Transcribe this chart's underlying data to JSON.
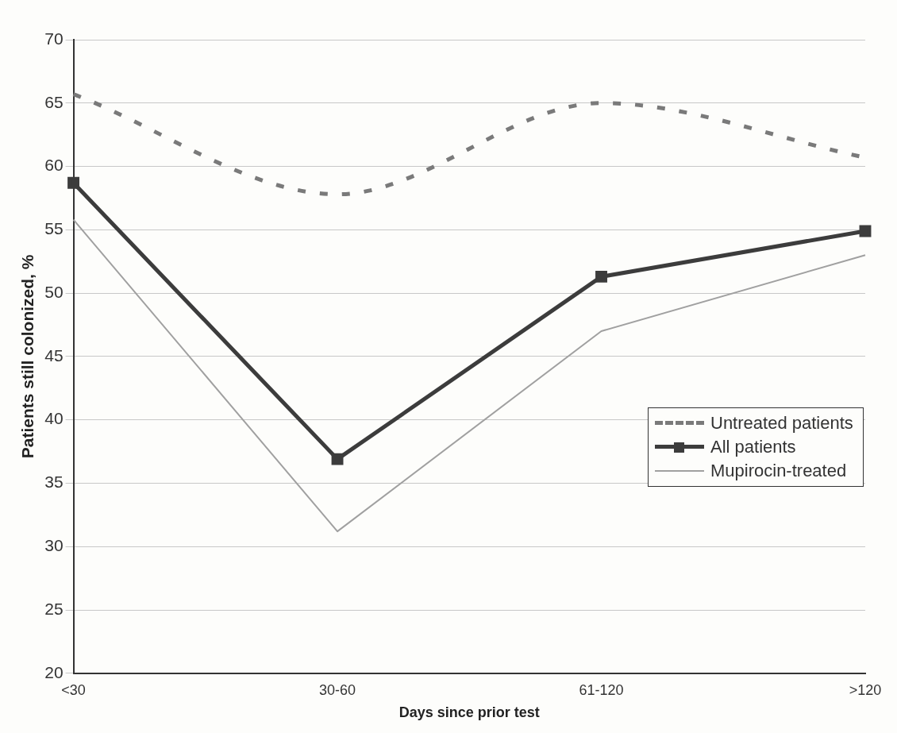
{
  "chart_data": {
    "type": "line",
    "xlabel": "Days since prior test",
    "ylabel": "Patients still colonized, %",
    "categories": [
      "<30",
      "30-60",
      "61-120",
      ">120"
    ],
    "series": [
      {
        "name": "Untreated patients",
        "color": "#7a7a7a",
        "values": [
          65.7,
          57.8,
          65.0,
          60.7
        ],
        "line_style": "dashed",
        "marker": "none"
      },
      {
        "name": "All patients",
        "color": "#3c3c3c",
        "values": [
          58.7,
          36.9,
          51.3,
          54.9
        ],
        "line_style": "solid",
        "marker": "square"
      },
      {
        "name": "Mupirocin-treated",
        "color": "#a0a0a0",
        "values": [
          55.8,
          31.2,
          47.0,
          53.0
        ],
        "line_style": "solid",
        "marker": "none"
      }
    ],
    "ylim": [
      20,
      70
    ],
    "yticks": [
      20,
      25,
      30,
      35,
      40,
      45,
      50,
      55,
      60,
      65,
      70
    ],
    "grid": "y",
    "legend": "bottom right"
  }
}
